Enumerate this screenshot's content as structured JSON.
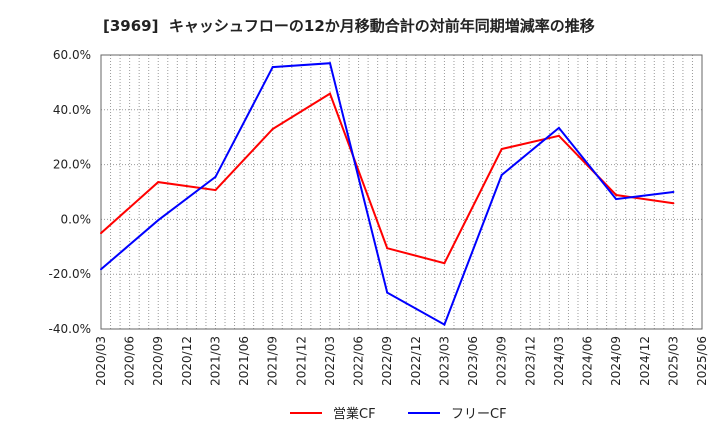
{
  "chart_data": {
    "type": "line",
    "title": "[3969]  キャッシュフローの12か月移動合計の対前年同期増減率の推移",
    "x_tick_labels": [
      "2020/03",
      "2020/06",
      "2020/09",
      "2020/12",
      "2021/03",
      "2021/06",
      "2021/09",
      "2021/12",
      "2022/03",
      "2022/06",
      "2022/09",
      "2022/12",
      "2023/03",
      "2023/06",
      "2023/09",
      "2023/12",
      "2024/03",
      "2024/06",
      "2024/09",
      "2024/12",
      "2025/03",
      "2025/06"
    ],
    "y_ticks": [
      60,
      40,
      20,
      0,
      -20,
      -40
    ],
    "y_tick_labels": [
      "60.0%",
      "40.0%",
      "20.0%",
      "0.0%",
      "-20.0%",
      "-40.0%"
    ],
    "ylim": [
      -40,
      60
    ],
    "x": [
      "2020/03",
      "2020/09",
      "2021/03",
      "2021/09",
      "2022/03",
      "2022/09",
      "2023/03",
      "2023/09",
      "2024/03",
      "2024/09",
      "2025/03"
    ],
    "series": [
      {
        "name": "営業CF",
        "color": "#ff0000",
        "values": [
          -5.0,
          13.6,
          10.7,
          33.0,
          45.9,
          -10.5,
          -16.0,
          25.7,
          30.5,
          8.9,
          5.9
        ]
      },
      {
        "name": "フリーCF",
        "color": "#0000ff",
        "values": [
          -18.2,
          -0.3,
          15.5,
          55.6,
          57.0,
          -26.7,
          -38.4,
          16.2,
          33.4,
          7.4,
          10.0
        ]
      }
    ],
    "grid": true,
    "legend": "bottom-center"
  }
}
